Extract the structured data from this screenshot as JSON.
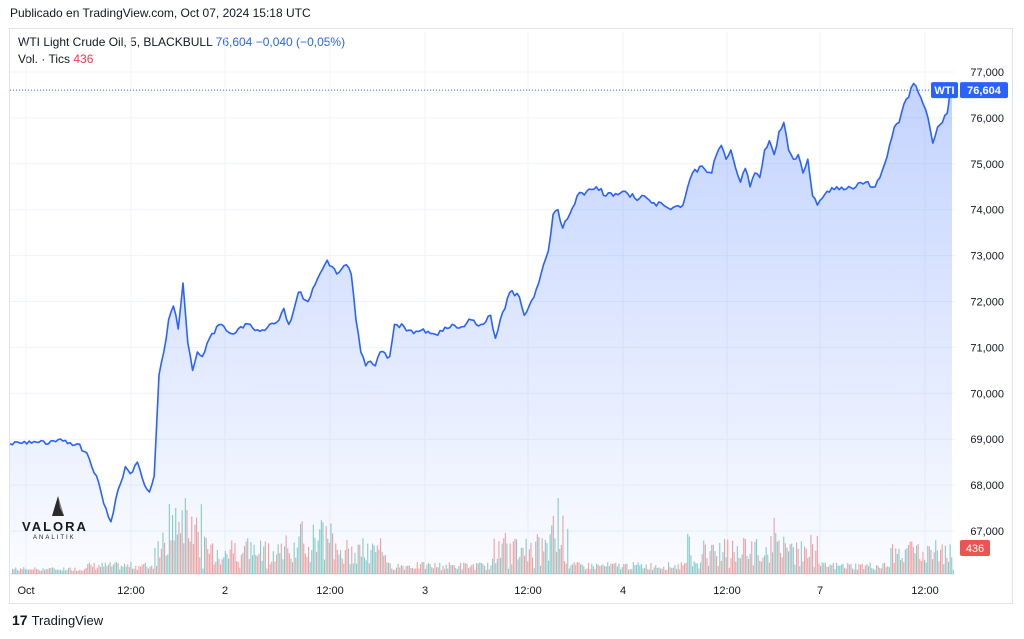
{
  "published": "Publicado en TradingView.com, Oct 07, 2024 15:18 UTC",
  "legend": {
    "symbol": "WTI Light Crude Oil, 5, BLACKBULL",
    "price": "76,604",
    "change": "−0,040 (−0,05%)",
    "vol_label": "Vol. · Tics",
    "vol_value": "436"
  },
  "badges": {
    "symbol": "WTI",
    "price": "76,604",
    "volume": "436"
  },
  "footer": {
    "brand": "TradingView"
  },
  "watermark": {
    "name": "VALORA",
    "sub": "ANALITIK"
  },
  "colors": {
    "line": "#2962ff",
    "up": "#26a69a",
    "down": "#ef5350",
    "grid": "#f0f3fa"
  },
  "chart_data": {
    "type": "area",
    "title": "WTI Light Crude Oil, 5, BLACKBULL",
    "y_ticks": [
      "77,000",
      "76,000",
      "75,000",
      "74,000",
      "73,000",
      "72,000",
      "71,000",
      "70,000",
      "69,000",
      "68,000",
      "67,000"
    ],
    "x_ticks": [
      "Oct",
      "12:00",
      "2",
      "12:00",
      "3",
      "12:00",
      "4",
      "12:00",
      "7",
      "12:00"
    ],
    "ylim": [
      66.0,
      77.4
    ],
    "last_price": 76.604,
    "price_series": [
      [
        0,
        68.9
      ],
      [
        2,
        68.92
      ],
      [
        5,
        68.95
      ],
      [
        8,
        68.9
      ],
      [
        11,
        68.96
      ],
      [
        14,
        68.9
      ],
      [
        16,
        68.7
      ],
      [
        18,
        68.2
      ],
      [
        19.5,
        67.6
      ],
      [
        21,
        67.2
      ],
      [
        22.5,
        67.9
      ],
      [
        24,
        68.4
      ],
      [
        25,
        68.25
      ],
      [
        26.5,
        68.5
      ],
      [
        28,
        68.0
      ],
      [
        29,
        67.85
      ],
      [
        30,
        68.2
      ],
      [
        31,
        70.4
      ],
      [
        32,
        70.9
      ],
      [
        33,
        71.6
      ],
      [
        34,
        71.9
      ],
      [
        35,
        71.4
      ],
      [
        36,
        72.4
      ],
      [
        37,
        71.1
      ],
      [
        38,
        70.5
      ],
      [
        39,
        70.9
      ],
      [
        40,
        70.8
      ],
      [
        42,
        71.3
      ],
      [
        44,
        71.5
      ],
      [
        46,
        71.3
      ],
      [
        48,
        71.45
      ],
      [
        50,
        71.5
      ],
      [
        52,
        71.35
      ],
      [
        54,
        71.5
      ],
      [
        56,
        71.6
      ],
      [
        57,
        71.85
      ],
      [
        58,
        71.5
      ],
      [
        59,
        71.8
      ],
      [
        60,
        72.2
      ],
      [
        62,
        72.0
      ],
      [
        64,
        72.5
      ],
      [
        66,
        72.9
      ],
      [
        68,
        72.6
      ],
      [
        70,
        72.8
      ],
      [
        71,
        72.6
      ],
      [
        72,
        71.6
      ],
      [
        73,
        70.9
      ],
      [
        74,
        70.6
      ],
      [
        75,
        70.7
      ],
      [
        76,
        70.6
      ],
      [
        77,
        70.9
      ],
      [
        79,
        70.8
      ],
      [
        80,
        71.5
      ],
      [
        82,
        71.45
      ],
      [
        84,
        71.3
      ],
      [
        86,
        71.4
      ],
      [
        88,
        71.3
      ],
      [
        90,
        71.35
      ],
      [
        92,
        71.5
      ],
      [
        94,
        71.45
      ],
      [
        96,
        71.6
      ],
      [
        98,
        71.5
      ],
      [
        100,
        71.7
      ],
      [
        101,
        71.2
      ],
      [
        102,
        71.6
      ],
      [
        104,
        72.2
      ],
      [
        106,
        72.1
      ],
      [
        107,
        71.7
      ],
      [
        108,
        71.9
      ],
      [
        110,
        72.4
      ],
      [
        111,
        72.8
      ],
      [
        112,
        73.1
      ],
      [
        113,
        73.9
      ],
      [
        114,
        74.0
      ],
      [
        115,
        73.6
      ],
      [
        116,
        73.8
      ],
      [
        118,
        74.3
      ],
      [
        120,
        74.4
      ],
      [
        122,
        74.5
      ],
      [
        124,
        74.3
      ],
      [
        126,
        74.35
      ],
      [
        128,
        74.4
      ],
      [
        130,
        74.25
      ],
      [
        132,
        74.3
      ],
      [
        134,
        74.15
      ],
      [
        136,
        74.1
      ],
      [
        138,
        74.05
      ],
      [
        140,
        74.1
      ],
      [
        141,
        74.5
      ],
      [
        142,
        74.8
      ],
      [
        144,
        74.95
      ],
      [
        146,
        74.8
      ],
      [
        147,
        75.2
      ],
      [
        148,
        75.4
      ],
      [
        149,
        75.1
      ],
      [
        150,
        75.3
      ],
      [
        151,
        74.9
      ],
      [
        152,
        74.6
      ],
      [
        153,
        74.9
      ],
      [
        154,
        74.5
      ],
      [
        155,
        74.8
      ],
      [
        156,
        74.7
      ],
      [
        157,
        75.3
      ],
      [
        158,
        75.5
      ],
      [
        159,
        75.2
      ],
      [
        160,
        75.7
      ],
      [
        161,
        75.9
      ],
      [
        162,
        75.3
      ],
      [
        163,
        75.1
      ],
      [
        164,
        75.2
      ],
      [
        165,
        74.8
      ],
      [
        166,
        75.1
      ],
      [
        167,
        74.3
      ],
      [
        168,
        74.1
      ],
      [
        170,
        74.4
      ],
      [
        172,
        74.5
      ],
      [
        174,
        74.45
      ],
      [
        176,
        74.5
      ],
      [
        178,
        74.6
      ],
      [
        180,
        74.5
      ],
      [
        181,
        74.7
      ],
      [
        182,
        75.0
      ],
      [
        183,
        75.4
      ],
      [
        184,
        75.8
      ],
      [
        185,
        75.9
      ],
      [
        186,
        76.3
      ],
      [
        187,
        76.45
      ],
      [
        188,
        76.75
      ],
      [
        189,
        76.55
      ],
      [
        190,
        76.3
      ],
      [
        191,
        76.0
      ],
      [
        192,
        75.45
      ],
      [
        193,
        75.8
      ],
      [
        194,
        75.9
      ],
      [
        195,
        76.1
      ],
      [
        195.5,
        76.5
      ],
      [
        196,
        76.604
      ]
    ]
  }
}
